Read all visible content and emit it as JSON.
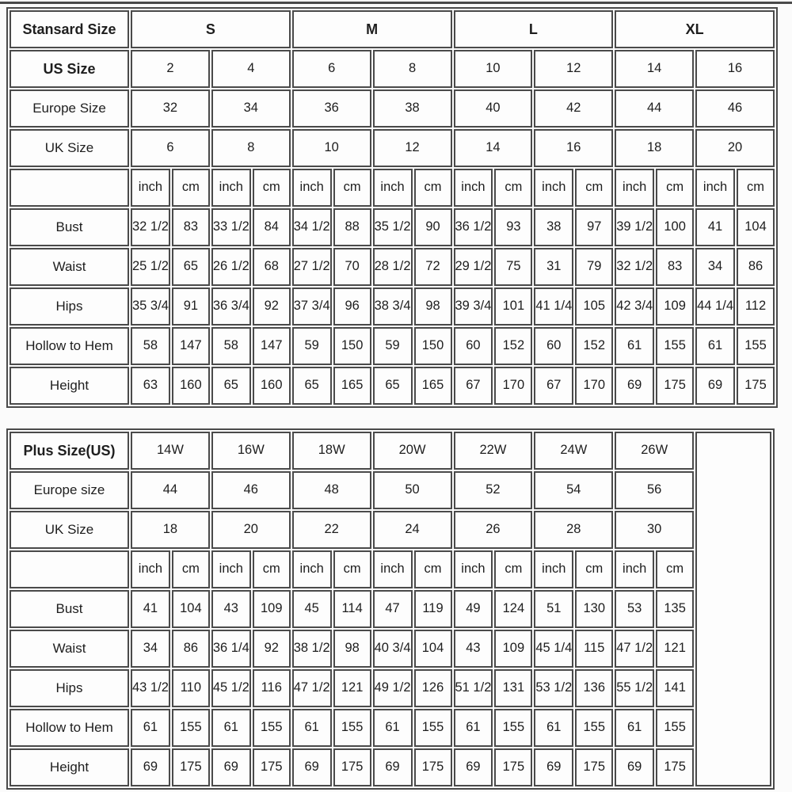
{
  "colors": {
    "background": "#fbfbfb",
    "cell_background": "#fdfdfd",
    "border": "#4a4a4a",
    "text": "#1e1e1e"
  },
  "chart_data": [
    {
      "type": "table",
      "title": "Stansard Size",
      "size_groups": [
        "S",
        "M",
        "L",
        "XL"
      ],
      "size_groups_bold": true,
      "conversion_rows": [
        {
          "label": "US Size",
          "bold": true,
          "values": [
            "2",
            "4",
            "6",
            "8",
            "10",
            "12",
            "14",
            "16"
          ]
        },
        {
          "label": "Europe Size",
          "bold": false,
          "values": [
            "32",
            "34",
            "36",
            "38",
            "40",
            "42",
            "44",
            "46"
          ]
        },
        {
          "label": "UK Size",
          "bold": false,
          "values": [
            "6",
            "8",
            "10",
            "12",
            "14",
            "16",
            "18",
            "20"
          ]
        }
      ],
      "units": [
        "inch",
        "cm"
      ],
      "unit_columns": 16,
      "trailing_empty_column": false,
      "measurement_rows": [
        {
          "label": "Bust",
          "values": [
            "32 1/2",
            "83",
            "33 1/2",
            "84",
            "34 1/2",
            "88",
            "35 1/2",
            "90",
            "36 1/2",
            "93",
            "38",
            "97",
            "39 1/2",
            "100",
            "41",
            "104"
          ]
        },
        {
          "label": "Waist",
          "values": [
            "25 1/2",
            "65",
            "26 1/2",
            "68",
            "27 1/2",
            "70",
            "28 1/2",
            "72",
            "29 1/2",
            "75",
            "31",
            "79",
            "32 1/2",
            "83",
            "34",
            "86"
          ]
        },
        {
          "label": "Hips",
          "values": [
            "35 3/4",
            "91",
            "36 3/4",
            "92",
            "37 3/4",
            "96",
            "38 3/4",
            "98",
            "39 3/4",
            "101",
            "41 1/4",
            "105",
            "42 3/4",
            "109",
            "44 1/4",
            "112"
          ]
        },
        {
          "label": "Hollow to Hem",
          "values": [
            "58",
            "147",
            "58",
            "147",
            "59",
            "150",
            "59",
            "150",
            "60",
            "152",
            "60",
            "152",
            "61",
            "155",
            "61",
            "155"
          ]
        },
        {
          "label": "Height",
          "values": [
            "63",
            "160",
            "65",
            "160",
            "65",
            "165",
            "65",
            "165",
            "67",
            "170",
            "67",
            "170",
            "69",
            "175",
            "69",
            "175"
          ]
        }
      ]
    },
    {
      "type": "table",
      "title": "Plus Size(US)",
      "size_groups": [
        "14W",
        "16W",
        "18W",
        "20W",
        "22W",
        "24W",
        "26W"
      ],
      "size_groups_bold": false,
      "conversion_rows": [
        {
          "label": "Europe size",
          "bold": false,
          "values": [
            "44",
            "46",
            "48",
            "50",
            "52",
            "54",
            "56"
          ]
        },
        {
          "label": "UK Size",
          "bold": false,
          "values": [
            "18",
            "20",
            "22",
            "24",
            "26",
            "28",
            "30"
          ]
        }
      ],
      "units": [
        "inch",
        "cm"
      ],
      "unit_columns": 14,
      "trailing_empty_column": true,
      "measurement_rows": [
        {
          "label": "Bust",
          "values": [
            "41",
            "104",
            "43",
            "109",
            "45",
            "114",
            "47",
            "119",
            "49",
            "124",
            "51",
            "130",
            "53",
            "135"
          ]
        },
        {
          "label": "Waist",
          "values": [
            "34",
            "86",
            "36 1/4",
            "92",
            "38 1/2",
            "98",
            "40 3/4",
            "104",
            "43",
            "109",
            "45 1/4",
            "115",
            "47 1/2",
            "121"
          ]
        },
        {
          "label": "Hips",
          "values": [
            "43 1/2",
            "110",
            "45 1/2",
            "116",
            "47 1/2",
            "121",
            "49 1/2",
            "126",
            "51 1/2",
            "131",
            "53 1/2",
            "136",
            "55 1/2",
            "141"
          ]
        },
        {
          "label": "Hollow to Hem",
          "values": [
            "61",
            "155",
            "61",
            "155",
            "61",
            "155",
            "61",
            "155",
            "61",
            "155",
            "61",
            "155",
            "61",
            "155"
          ]
        },
        {
          "label": "Height",
          "values": [
            "69",
            "175",
            "69",
            "175",
            "69",
            "175",
            "69",
            "175",
            "69",
            "175",
            "69",
            "175",
            "69",
            "175"
          ]
        }
      ]
    }
  ]
}
